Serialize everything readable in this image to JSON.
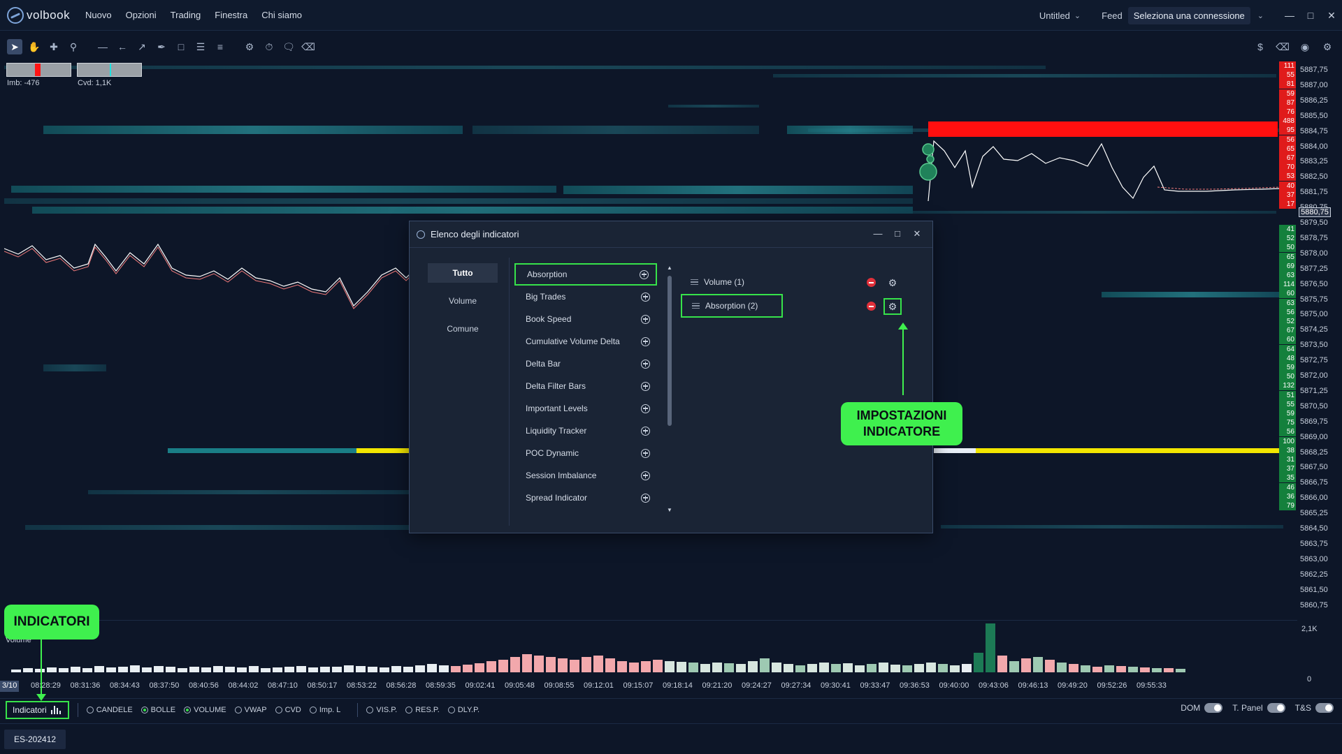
{
  "app": {
    "brand": "volbook",
    "menu": [
      "Nuovo",
      "Opzioni",
      "Trading",
      "Finestra",
      "Chi siamo"
    ],
    "workspace": "Untitled",
    "feed_label": "Feed",
    "connection_placeholder": "Seleziona una connessione"
  },
  "toolbar": {
    "left_icons": [
      "cursor-icon",
      "hand-icon",
      "crosshair-icon",
      "zoom-icon",
      "horizontal-line-icon",
      "ray-icon",
      "trend-line-icon",
      "ruler-icon",
      "rectangle-icon",
      "menu-lines-icon",
      "list-lines-icon",
      "settings-sliders-icon",
      "timer-icon",
      "comment-icon",
      "eraser-icon"
    ],
    "right_icons": [
      "dollar-icon",
      "eraser-icon",
      "record-icon",
      "gear-icon"
    ]
  },
  "widgets": {
    "imbalance_label": "Imb: -476",
    "cvd_label": "Cvd: 1,1K"
  },
  "price_scale": [
    "5887,75",
    "5887,00",
    "5886,25",
    "5885,50",
    "5884,75",
    "5884,00",
    "5883,25",
    "5882,50",
    "5881,75",
    "5880,75",
    "5879,50",
    "5878,75",
    "5878,00",
    "5877,25",
    "5876,50",
    "5875,75",
    "5875,00",
    "5874,25",
    "5873,50",
    "5872,75",
    "5872,00",
    "5871,25",
    "5870,50",
    "5869,75",
    "5869,00",
    "5868,25",
    "5867,50",
    "5866,75",
    "5866,00",
    "5865,25",
    "5864,50",
    "5863,75",
    "5863,00",
    "5862,25",
    "5861,50",
    "5860,75"
  ],
  "current_price": "5880,75",
  "dom_ask": [
    "111",
    "55",
    "81",
    "59",
    "87",
    "76",
    "488",
    "95",
    "56",
    "65",
    "67",
    "70",
    "53",
    "40",
    "37",
    "17"
  ],
  "dom_bid": [
    "41",
    "52",
    "50",
    "65",
    "69",
    "63",
    "114",
    "60",
    "63",
    "56",
    "52",
    "67",
    "60",
    "64",
    "48",
    "59",
    "50",
    "132",
    "51",
    "55",
    "59",
    "75",
    "56",
    "100",
    "38",
    "31",
    "37",
    "35",
    "46",
    "36",
    "79"
  ],
  "volume": {
    "title": "Volume",
    "scale_top": "2,1K",
    "scale_bottom": "0"
  },
  "time_axis": {
    "first": "3/10",
    "labels": [
      "08:28:29",
      "08:31:36",
      "08:34:43",
      "08:37:50",
      "08:40:56",
      "08:44:02",
      "08:47:10",
      "08:50:17",
      "08:53:22",
      "08:56:28",
      "08:59:35",
      "09:02:41",
      "09:05:48",
      "09:08:55",
      "09:12:01",
      "09:15:07",
      "09:18:14",
      "09:21:20",
      "09:24:27",
      "09:27:34",
      "09:30:41",
      "09:33:47",
      "09:36:53",
      "09:40:00",
      "09:43:06",
      "09:46:13",
      "09:49:20",
      "09:52:26",
      "09:55:33"
    ]
  },
  "bottom_bar": {
    "indicators_button": "Indicatori",
    "options": [
      {
        "label": "CANDELE",
        "on": false
      },
      {
        "label": "BOLLE",
        "on": true
      },
      {
        "label": "VOLUME",
        "on": true
      },
      {
        "label": "VWAP",
        "on": false
      },
      {
        "label": "CVD",
        "on": false
      },
      {
        "label": "Imp. L",
        "on": false
      }
    ],
    "options2": [
      {
        "label": "VIS.P.",
        "on": false
      },
      {
        "label": "RES.P.",
        "on": false
      },
      {
        "label": "DLY.P.",
        "on": false
      }
    ],
    "toggles": [
      "DOM",
      "T. Panel",
      "T&S"
    ]
  },
  "status_bar": {
    "instrument_tab": "ES-202412"
  },
  "dialog": {
    "title": "Elenco degli indicatori",
    "categories": [
      "Tutto",
      "Volume",
      "Comune"
    ],
    "available": [
      "Absorption",
      "Big Trades",
      "Book Speed",
      "Cumulative Volume Delta",
      "Delta Bar",
      "Delta Filter Bars",
      "Important Levels",
      "Liquidity Tracker",
      "POC Dynamic",
      "Session Imbalance",
      "Spread Indicator"
    ],
    "active": [
      "Volume (1)",
      "Absorption (2)"
    ]
  },
  "annotations": {
    "indicators": "INDICATORI",
    "settings_line1": "IMPOSTAZIONI",
    "settings_line2": "INDICATORE"
  },
  "colors": {
    "highlight": "#37e34a",
    "ask": "#e01b1b",
    "bid": "#14803c",
    "heatmap": "#1b6e7a",
    "level": "#f2e600"
  }
}
